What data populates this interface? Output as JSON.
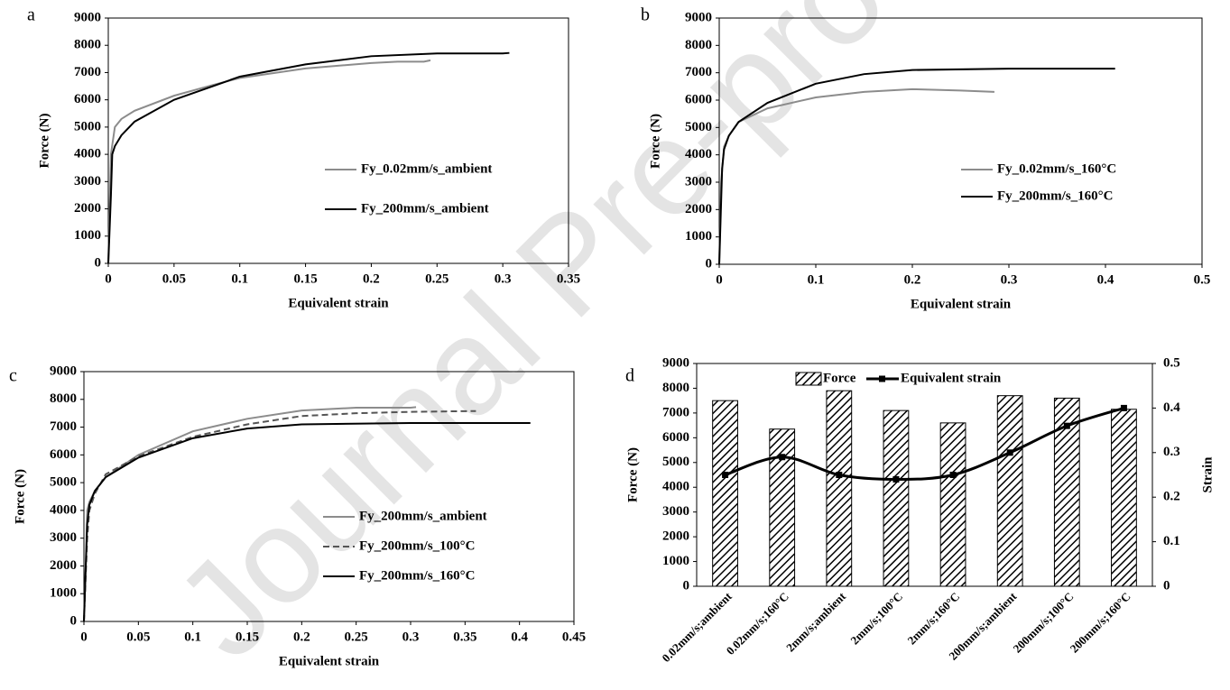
{
  "watermark": "Journal Pre-proof",
  "chart_data": [
    {
      "type": "line",
      "panel": "a",
      "xlabel": "Equivalent strain",
      "ylabel": "Force (N)",
      "xlim": [
        0,
        0.35
      ],
      "xticks": [
        0,
        0.05,
        0.1,
        0.15,
        0.2,
        0.25,
        0.3,
        0.35
      ],
      "ylim": [
        0,
        9000
      ],
      "yticks": [
        0,
        1000,
        2000,
        3000,
        4000,
        5000,
        6000,
        7000,
        8000,
        9000
      ],
      "legend": "center right",
      "series": [
        {
          "name": "Fy_0.02mm/s_ambient",
          "color": "#8c8c8c",
          "x": [
            0,
            0.001,
            0.002,
            0.005,
            0.01,
            0.02,
            0.05,
            0.08,
            0.1,
            0.15,
            0.2,
            0.22,
            0.24,
            0.245
          ],
          "values": [
            0,
            2000,
            4000,
            5000,
            5300,
            5600,
            6150,
            6550,
            6800,
            7150,
            7350,
            7400,
            7400,
            7450
          ]
        },
        {
          "name": "Fy_200mm/s_ambient",
          "color": "#000000",
          "x": [
            0,
            0.002,
            0.003,
            0.005,
            0.01,
            0.02,
            0.05,
            0.1,
            0.15,
            0.2,
            0.25,
            0.3,
            0.305
          ],
          "values": [
            0,
            2500,
            4000,
            4300,
            4700,
            5200,
            6000,
            6850,
            7300,
            7600,
            7700,
            7700,
            7720
          ]
        }
      ]
    },
    {
      "type": "line",
      "panel": "b",
      "xlabel": "Equivalent strain",
      "ylabel": "Force (N)",
      "xlim": [
        0,
        0.5
      ],
      "xticks": [
        0,
        0.1,
        0.2,
        0.3,
        0.4,
        0.5
      ],
      "ylim": [
        0,
        9000
      ],
      "yticks": [
        0,
        1000,
        2000,
        3000,
        4000,
        5000,
        6000,
        7000,
        8000,
        9000
      ],
      "legend": "center right",
      "series": [
        {
          "name": "Fy_0.02mm/s_160°C",
          "color": "#8c8c8c",
          "x": [
            0,
            0.002,
            0.005,
            0.01,
            0.02,
            0.05,
            0.1,
            0.15,
            0.2,
            0.25,
            0.285
          ],
          "values": [
            0,
            3000,
            4300,
            4700,
            5200,
            5700,
            6100,
            6300,
            6400,
            6350,
            6300
          ]
        },
        {
          "name": "Fy_200mm/s_160°C",
          "color": "#000000",
          "x": [
            0,
            0.003,
            0.005,
            0.01,
            0.02,
            0.05,
            0.1,
            0.15,
            0.2,
            0.3,
            0.41
          ],
          "values": [
            0,
            3500,
            4200,
            4700,
            5200,
            5900,
            6600,
            6950,
            7100,
            7150,
            7150
          ]
        }
      ]
    },
    {
      "type": "line",
      "panel": "c",
      "xlabel": "Equivalent strain",
      "ylabel": "Force (N)",
      "xlim": [
        0,
        0.45
      ],
      "xticks": [
        0,
        0.05,
        0.1,
        0.15,
        0.2,
        0.25,
        0.3,
        0.35,
        0.4,
        0.45
      ],
      "ylim": [
        0,
        9000
      ],
      "yticks": [
        0,
        1000,
        2000,
        3000,
        4000,
        5000,
        6000,
        7000,
        8000,
        9000
      ],
      "legend": "center right",
      "series": [
        {
          "name": "Fy_200mm/s_ambient",
          "color": "#8c8c8c",
          "x": [
            0,
            0.002,
            0.003,
            0.005,
            0.01,
            0.02,
            0.05,
            0.1,
            0.15,
            0.2,
            0.25,
            0.3,
            0.305
          ],
          "values": [
            0,
            2500,
            4000,
            4300,
            4700,
            5200,
            6000,
            6850,
            7300,
            7600,
            7700,
            7700,
            7720
          ]
        },
        {
          "name": "Fy_200mm/s_100°C",
          "color": "#555555",
          "dash": true,
          "x": [
            0,
            0.003,
            0.005,
            0.01,
            0.02,
            0.05,
            0.1,
            0.15,
            0.2,
            0.25,
            0.3,
            0.36
          ],
          "values": [
            0,
            3000,
            4000,
            4600,
            5300,
            5950,
            6650,
            7100,
            7400,
            7500,
            7550,
            7580
          ]
        },
        {
          "name": "Fy_200mm/s_160°C",
          "color": "#000000",
          "x": [
            0,
            0.003,
            0.005,
            0.01,
            0.02,
            0.05,
            0.1,
            0.15,
            0.2,
            0.3,
            0.41
          ],
          "values": [
            0,
            3500,
            4200,
            4700,
            5200,
            5900,
            6600,
            6950,
            7100,
            7150,
            7150
          ]
        }
      ]
    },
    {
      "type": "bar",
      "panel": "d",
      "ylabel": "Force (N)",
      "y2label": "Strain",
      "categories": [
        "0.02mm/s;ambient",
        "0.02mm/s;160°C",
        "2mm/s;ambient",
        "2mm/s;100°C",
        "2mm/s;160°C",
        "200mm/s;ambient",
        "200mm/s;100°C",
        "200mm/s;160°C"
      ],
      "ylim": [
        0,
        9000
      ],
      "yticks": [
        0,
        1000,
        2000,
        3000,
        4000,
        5000,
        6000,
        7000,
        8000,
        9000
      ],
      "y2lim": [
        0,
        0.5
      ],
      "y2ticks": [
        0,
        0.1,
        0.2,
        0.3,
        0.4,
        0.5
      ],
      "legend": "top",
      "series": [
        {
          "name": "Force",
          "color": "#000000",
          "values": [
            7500,
            6350,
            7900,
            7100,
            6600,
            7700,
            7600,
            7150
          ]
        },
        {
          "name": "Equivalent strain",
          "color": "#000000",
          "type": "line",
          "axis": "y2",
          "values": [
            0.25,
            0.29,
            0.25,
            0.24,
            0.25,
            0.3,
            0.36,
            0.4
          ]
        }
      ]
    }
  ]
}
